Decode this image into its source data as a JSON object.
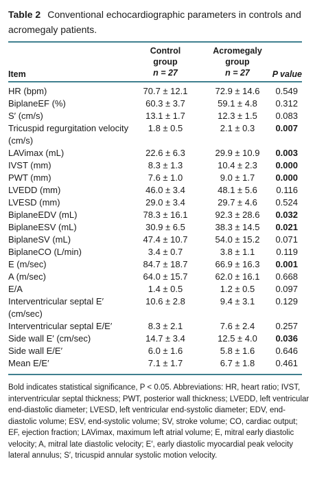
{
  "caption": {
    "label": "Table 2",
    "text": "Conventional echocardiographic parameters in controls and acromegaly patients."
  },
  "header": {
    "item": "Item",
    "control": {
      "line1": "Control",
      "line2": "group",
      "n": "n = 27"
    },
    "acromegaly": {
      "line1": "Acromegaly",
      "line2": "group",
      "n": "n = 27"
    },
    "pvalue": "P value"
  },
  "rows": [
    {
      "item": "HR (bpm)",
      "control": "70.7 ± 12.1",
      "acro": "72.9 ± 14.6",
      "p": "0.549",
      "sig": false
    },
    {
      "item": "BiplaneEF (%)",
      "control": "60.3 ± 3.7",
      "acro": "59.1 ± 4.8",
      "p": "0.312",
      "sig": false
    },
    {
      "item": "S′ (cm/s)",
      "control": "13.1 ± 1.7",
      "acro": "12.3 ± 1.5",
      "p": "0.083",
      "sig": false
    },
    {
      "item": "Tricuspid regurgitation velocity (cm/s)",
      "control": "1.8 ± 0.5",
      "acro": "2.1 ± 0.3",
      "p": "0.007",
      "sig": true
    },
    {
      "item": "LAVimax (mL)",
      "control": "22.6 ± 6.3",
      "acro": "29.9 ± 10.9",
      "p": "0.003",
      "sig": true
    },
    {
      "item": "IVST (mm)",
      "control": "8.3 ± 1.3",
      "acro": "10.4 ± 2.3",
      "p": "0.000",
      "sig": true
    },
    {
      "item": "PWT (mm)",
      "control": "7.6 ± 1.0",
      "acro": "9.0 ± 1.7",
      "p": "0.000",
      "sig": true
    },
    {
      "item": "LVEDD (mm)",
      "control": "46.0 ± 3.4",
      "acro": "48.1 ± 5.6",
      "p": "0.116",
      "sig": false
    },
    {
      "item": "LVESD (mm)",
      "control": "29.0 ± 3.4",
      "acro": "29.7 ± 4.6",
      "p": "0.524",
      "sig": false
    },
    {
      "item": "BiplaneEDV (mL)",
      "control": "78.3 ± 16.1",
      "acro": "92.3 ± 28.6",
      "p": "0.032",
      "sig": true
    },
    {
      "item": "BiplaneESV (mL)",
      "control": "30.9 ± 6.5",
      "acro": "38.3 ± 14.5",
      "p": "0.021",
      "sig": true
    },
    {
      "item": "BiplaneSV (mL)",
      "control": "47.4 ± 10.7",
      "acro": "54.0 ± 15.2",
      "p": "0.071",
      "sig": false
    },
    {
      "item": "BiplaneCO (L/min)",
      "control": "3.4 ± 0.7",
      "acro": "3.8 ± 1.1",
      "p": "0.119",
      "sig": false
    },
    {
      "item": "E (m/sec)",
      "control": "84.7 ± 18.7",
      "acro": "66.9 ± 16.3",
      "p": "0.001",
      "sig": true
    },
    {
      "item": "A (m/sec)",
      "control": "64.0 ± 15.7",
      "acro": "62.0 ± 16.1",
      "p": "0.668",
      "sig": false
    },
    {
      "item": "E/A",
      "control": "1.4 ± 0.5",
      "acro": "1.2 ± 0.5",
      "p": "0.097",
      "sig": false
    },
    {
      "item": "Interventricular septal E′ (cm/sec)",
      "control": "10.6 ± 2.8",
      "acro": "9.4 ± 3.1",
      "p": "0.129",
      "sig": false
    },
    {
      "item": "Interventricular septal E/E′",
      "control": "8.3 ± 2.1",
      "acro": "7.6 ± 2.4",
      "p": "0.257",
      "sig": false
    },
    {
      "item": "Side wall E′ (cm/sec)",
      "control": "14.7 ± 3.4",
      "acro": "12.5 ± 4.0",
      "p": "0.036",
      "sig": true
    },
    {
      "item": "Side wall E/E′",
      "control": "6.0 ± 1.6",
      "acro": "5.8 ± 1.6",
      "p": "0.646",
      "sig": false
    },
    {
      "item": "Mean E/E′",
      "control": "7.1 ± 1.7",
      "acro": "6.7 ± 1.8",
      "p": "0.461",
      "sig": false
    }
  ],
  "footnote": "Bold indicates statistical significance, P < 0.05. Abbreviations: HR, heart ratio; IVST, interventricular septal thickness; PWT, posterior wall thickness; LVEDD, left ventricular end-diastolic diameter; LVESD, left ventricular end-systolic diameter; EDV, end-diastolic volume; ESV, end-systolic volume; SV, stroke volume; CO, cardiac output; EF, ejection fraction; LAVimax, maximum left atrial volume; E, mitral early diastolic velocity; A, mitral late diastolic velocity; E′, early diastolic myocardial peak velocity lateral annulus; S′, tricuspid annular systolic motion velocity."
}
